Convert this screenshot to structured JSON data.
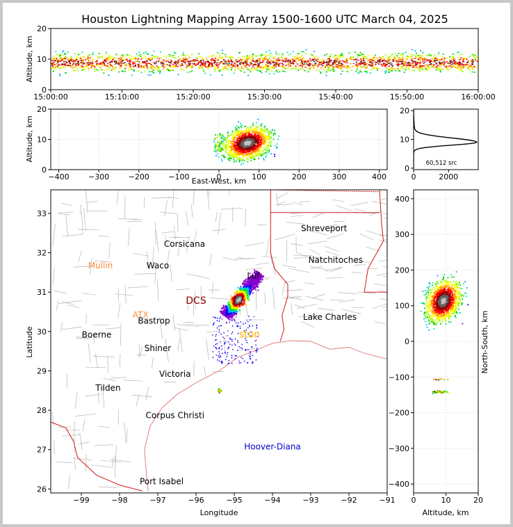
{
  "chart_data": {
    "type": "scatter",
    "title": "Houston Lightning Mapping Array 1500-1600 UTC March 04, 2025",
    "source_count": "60,512 src",
    "colors": {
      "density_scale": [
        "#8800cc",
        "#0000ff",
        "#00a0ff",
        "#00e0c0",
        "#00d000",
        "#a0ff00",
        "#ffff00",
        "#ff9900",
        "#ff0000",
        "#900000",
        "#606060",
        "#c0c0c0"
      ],
      "state_border": "#cc0000",
      "county_border": "#b4b4b4",
      "coast": "#e07070",
      "city_label": "#000000",
      "highlight_label": "#8b0000",
      "radar_label": "#ff8c40",
      "gold_label": "#ffb000",
      "offshore_label": "#0000cc"
    },
    "time_height": {
      "ylabel": "Altitude, km",
      "ylim": [
        0,
        20
      ],
      "yticks": [
        "0",
        "10",
        "20"
      ],
      "xticks": [
        "15:00:00",
        "15:10:00",
        "15:20:00",
        "15:30:00",
        "15:40:00",
        "15:50:00",
        "16:00:00"
      ],
      "x_minutes": [
        0,
        10,
        20,
        30,
        40,
        50,
        60
      ],
      "band_center_km": 9,
      "band_halfwidth_km": 4
    },
    "ew_height": {
      "xlabel": "East-West, km",
      "ylabel": "Altitude, km",
      "xlim": [
        -420,
        420
      ],
      "ylim": [
        0,
        20
      ],
      "xticks": [
        "−400",
        "−300",
        "−200",
        "−100",
        "0",
        "100",
        "200",
        "300",
        "400"
      ],
      "xtick_values": [
        -400,
        -300,
        -200,
        -100,
        0,
        100,
        200,
        300,
        400
      ],
      "yticks": [
        "0",
        "10",
        "20"
      ],
      "cluster_center_ew_km": 70,
      "cluster_center_alt_km": 9
    },
    "altitude_histogram": {
      "xlim": [
        0,
        3700
      ],
      "ylim": [
        -0.5,
        20.5
      ],
      "xticks": [
        "0",
        "2000"
      ],
      "xtick_values": [
        0,
        2000
      ],
      "yticks": [
        "0",
        "10",
        "20"
      ],
      "peak_altitude_km": 9,
      "peak_count": 3600
    },
    "plan_view": {
      "xlabel": "Longitude",
      "ylabel": "Latitude",
      "xlim": [
        -99.8,
        -91.0
      ],
      "ylim": [
        25.9,
        33.6
      ],
      "xticks": [
        "−99",
        "−98",
        "−97",
        "−96",
        "−95",
        "−94",
        "−93",
        "−92",
        "−91"
      ],
      "xtick_values": [
        -99,
        -98,
        -97,
        -96,
        -95,
        -94,
        -93,
        -92,
        -91
      ],
      "yticks": [
        "26",
        "27",
        "28",
        "29",
        "30",
        "31",
        "32",
        "33"
      ],
      "ytick_values": [
        26,
        27,
        28,
        29,
        30,
        31,
        32,
        33
      ],
      "storm_axis": [
        [
          -95.25,
          30.4
        ],
        [
          -94.35,
          31.5
        ]
      ],
      "labels": [
        {
          "text": "Shreveport",
          "lon": -92.65,
          "lat": 32.55,
          "style": "city"
        },
        {
          "text": "Corsicana",
          "lon": -96.3,
          "lat": 32.15,
          "style": "city"
        },
        {
          "text": "Natchitoches",
          "lon": -92.35,
          "lat": 31.75,
          "style": "city"
        },
        {
          "text": "Mullin",
          "lon": -98.5,
          "lat": 31.6,
          "style": "radar"
        },
        {
          "text": "Waco",
          "lon": -97.0,
          "lat": 31.6,
          "style": "city"
        },
        {
          "text": "Luf",
          "lon": -94.5,
          "lat": 31.35,
          "style": "city"
        },
        {
          "text": "DCS",
          "lon": -96.0,
          "lat": 30.7,
          "style": "highlight"
        },
        {
          "text": "ATX",
          "lon": -97.45,
          "lat": 30.35,
          "style": "radar"
        },
        {
          "text": "Bastrop",
          "lon": -97.1,
          "lat": 30.2,
          "style": "city"
        },
        {
          "text": "Lake Charles",
          "lon": -92.5,
          "lat": 30.3,
          "style": "city"
        },
        {
          "text": "Boerne",
          "lon": -98.6,
          "lat": 29.85,
          "style": "city"
        },
        {
          "text": "ston",
          "lon": -94.6,
          "lat": 29.85,
          "style": "gold"
        },
        {
          "text": "Shiner",
          "lon": -97.0,
          "lat": 29.5,
          "style": "city"
        },
        {
          "text": "Victoria",
          "lon": -96.55,
          "lat": 28.85,
          "style": "city"
        },
        {
          "text": "Tilden",
          "lon": -98.3,
          "lat": 28.5,
          "style": "city"
        },
        {
          "text": "Corpus Christi",
          "lon": -96.55,
          "lat": 27.8,
          "style": "city"
        },
        {
          "text": "Hoover-Diana",
          "lon": -94.0,
          "lat": 27.0,
          "style": "offshore"
        },
        {
          "text": "Port Isabel",
          "lon": -96.9,
          "lat": 26.12,
          "style": "city"
        }
      ]
    },
    "ns_altitude": {
      "xlabel": "Altitude, km",
      "ylabel": "North-South, km",
      "xlim": [
        0,
        20
      ],
      "ylim": [
        -425,
        425
      ],
      "xticks": [
        "0",
        "10",
        "20"
      ],
      "xtick_values": [
        0,
        10,
        20
      ],
      "yticks": [
        "−400",
        "−300",
        "−200",
        "−100",
        "0",
        "100",
        "200",
        "300",
        "400"
      ],
      "ytick_values": [
        -400,
        -300,
        -200,
        -100,
        0,
        100,
        200,
        300,
        400
      ],
      "main_cluster_ns_km": [
        40,
        200
      ],
      "small_clusters_ns_km": [
        -105,
        -140
      ]
    }
  }
}
